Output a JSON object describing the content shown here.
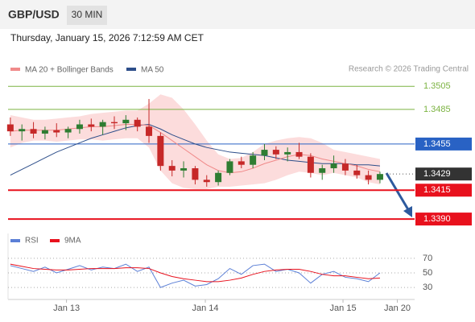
{
  "header": {
    "symbol": "GBP/USD",
    "timeframe": "30 MIN",
    "timestamp": "Thursday, January 15, 2026 7:12:59 AM CET"
  },
  "chart_data": {
    "type": "candlestick",
    "legend": [
      {
        "name": "MA 20 + Bollinger Bands",
        "color": "#f08a8a"
      },
      {
        "name": "MA 50",
        "color": "#2d4e8a"
      }
    ],
    "source": "Research © 2026 Trading Central",
    "x": [
      0,
      1,
      2,
      3,
      4,
      5,
      6,
      7,
      8,
      9,
      10,
      11,
      12,
      13,
      14,
      15,
      16,
      17,
      18,
      19,
      20,
      21,
      22,
      23,
      24,
      25,
      26,
      27,
      28,
      29,
      30,
      31,
      32
    ],
    "open": [
      1.3472,
      1.3466,
      1.3468,
      1.3464,
      1.3467,
      1.3465,
      1.3468,
      1.3472,
      1.347,
      1.3474,
      1.3473,
      1.3476,
      1.347,
      1.3462,
      1.3436,
      1.3432,
      1.3434,
      1.3424,
      1.3422,
      1.343,
      1.344,
      1.3437,
      1.3445,
      1.345,
      1.3446,
      1.3448,
      1.3444,
      1.343,
      1.3434,
      1.3438,
      1.3432,
      1.3428,
      1.3424
    ],
    "high": [
      1.3478,
      1.3472,
      1.3474,
      1.347,
      1.3473,
      1.347,
      1.3476,
      1.3477,
      1.3476,
      1.3479,
      1.348,
      1.3478,
      1.3494,
      1.3465,
      1.3441,
      1.344,
      1.3436,
      1.3428,
      1.3432,
      1.3442,
      1.3444,
      1.3448,
      1.3455,
      1.3453,
      1.3452,
      1.3456,
      1.3447,
      1.3437,
      1.3445,
      1.3442,
      1.3437,
      1.3432,
      1.3431
    ],
    "low": [
      1.3462,
      1.3458,
      1.346,
      1.3459,
      1.3461,
      1.346,
      1.3464,
      1.3466,
      1.3463,
      1.3468,
      1.3467,
      1.3466,
      1.3456,
      1.3432,
      1.3427,
      1.3426,
      1.342,
      1.3418,
      1.3419,
      1.3428,
      1.3434,
      1.3434,
      1.3441,
      1.3442,
      1.344,
      1.3442,
      1.3426,
      1.3424,
      1.343,
      1.3428,
      1.3425,
      1.342,
      1.3421
    ],
    "close": [
      1.3466,
      1.3468,
      1.3464,
      1.3467,
      1.3465,
      1.3468,
      1.3472,
      1.347,
      1.3474,
      1.3473,
      1.3476,
      1.347,
      1.3462,
      1.3436,
      1.3432,
      1.3434,
      1.3424,
      1.3422,
      1.343,
      1.344,
      1.3437,
      1.3445,
      1.345,
      1.3446,
      1.3448,
      1.3444,
      1.343,
      1.3434,
      1.3438,
      1.3432,
      1.3428,
      1.3424,
      1.3429
    ],
    "ma20": [
      1.3466,
      1.3467,
      1.3467,
      1.3467,
      1.3467,
      1.3468,
      1.3469,
      1.347,
      1.347,
      1.3471,
      1.3472,
      1.3472,
      1.3471,
      1.3465,
      1.3458,
      1.3451,
      1.3444,
      1.3437,
      1.3432,
      1.343,
      1.3431,
      1.3434,
      1.3438,
      1.3441,
      1.3444,
      1.3446,
      1.3445,
      1.3442,
      1.344,
      1.3438,
      1.3436,
      1.3433,
      1.3431
    ],
    "ma50": [
      1.3428,
      1.3433,
      1.3438,
      1.3443,
      1.3448,
      1.3452,
      1.3456,
      1.346,
      1.3463,
      1.3466,
      1.3469,
      1.3471,
      1.3472,
      1.3468,
      1.3463,
      1.3459,
      1.3455,
      1.3452,
      1.345,
      1.3448,
      1.3447,
      1.3446,
      1.3445,
      1.3443,
      1.3441,
      1.344,
      1.3439,
      1.3438,
      1.3438,
      1.3438,
      1.3437,
      1.3437,
      1.3436
    ],
    "bb_upper": [
      1.348,
      1.3478,
      1.3476,
      1.3476,
      1.3477,
      1.3478,
      1.3479,
      1.3481,
      1.3482,
      1.3483,
      1.3484,
      1.3484,
      1.349,
      1.3498,
      1.3495,
      1.3485,
      1.3472,
      1.3458,
      1.3446,
      1.3442,
      1.3443,
      1.3448,
      1.3455,
      1.3458,
      1.346,
      1.3461,
      1.346,
      1.3456,
      1.345,
      1.3448,
      1.3446,
      1.3444,
      1.3442
    ],
    "bb_lower": [
      1.3452,
      1.3456,
      1.3458,
      1.3458,
      1.3457,
      1.3458,
      1.3459,
      1.3459,
      1.3458,
      1.3459,
      1.346,
      1.346,
      1.3452,
      1.3432,
      1.3421,
      1.3417,
      1.3416,
      1.3416,
      1.3418,
      1.3418,
      1.3419,
      1.342,
      1.3421,
      1.3424,
      1.3428,
      1.3431,
      1.343,
      1.3428,
      1.343,
      1.3428,
      1.3426,
      1.3422,
      1.342
    ],
    "up_color": "#2e7d32",
    "down_color": "#c62828",
    "band_color": "#fbd3d3",
    "levels": [
      {
        "value": 1.3505,
        "color": "#7cb342",
        "style": "plain"
      },
      {
        "value": 1.3485,
        "color": "#7cb342",
        "style": "plain"
      },
      {
        "value": 1.3455,
        "color": "#2962c4",
        "style": "box"
      },
      {
        "value": 1.3429,
        "color": "#333333",
        "style": "current"
      },
      {
        "value": 1.3415,
        "color": "#e8111d",
        "style": "box"
      },
      {
        "value": 1.339,
        "label": "1.3390",
        "color": "#e8111d",
        "style": "box"
      }
    ],
    "ylim": [
      1.3381,
      1.3517
    ],
    "xlim": [
      -0.2,
      35
    ],
    "xticks": [
      {
        "value": 4.86,
        "label": "Jan 13"
      },
      {
        "value": 16.88,
        "label": "Jan 14"
      },
      {
        "value": 28.8,
        "label": "Jan 15"
      },
      {
        "value": 33.5,
        "label": "Jan 20"
      }
    ],
    "rsi": {
      "type": "line",
      "ylim": [
        18,
        82
      ],
      "yticks": [
        70,
        50,
        30
      ],
      "series": [
        {
          "name": "RSI",
          "color": "#5b7fd6",
          "values": [
            60,
            56,
            52,
            58,
            50,
            55,
            60,
            54,
            58,
            56,
            62,
            52,
            58,
            30,
            36,
            40,
            32,
            34,
            42,
            56,
            48,
            60,
            62,
            52,
            55,
            50,
            36,
            48,
            52,
            44,
            42,
            38,
            50
          ]
        },
        {
          "name": "9MA",
          "color": "#e8111d",
          "values": [
            62,
            59,
            56,
            55,
            54,
            54,
            55,
            56,
            56,
            56,
            57,
            57,
            56,
            50,
            45,
            42,
            40,
            38,
            38,
            40,
            43,
            48,
            52,
            54,
            55,
            55,
            52,
            48,
            46,
            46,
            44,
            42,
            43
          ]
        }
      ]
    }
  }
}
